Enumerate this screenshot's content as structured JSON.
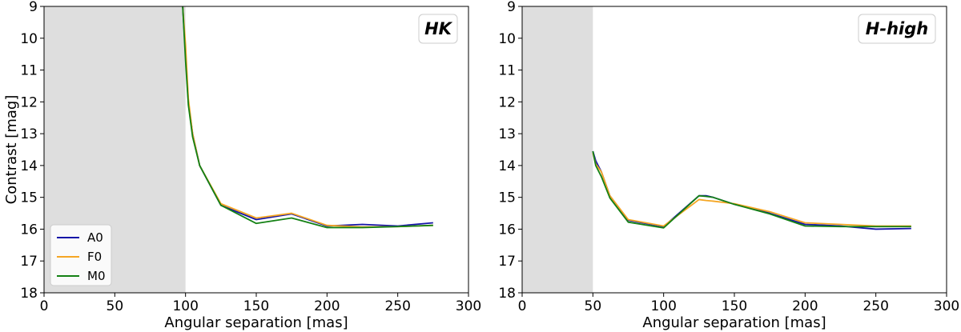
{
  "chart_data": [
    {
      "type": "line",
      "panel_label": "HK",
      "xlabel": "Angular separation [mas]",
      "ylabel": "Contrast [mag]",
      "xlim": [
        0,
        300
      ],
      "ylim": [
        18,
        9
      ],
      "y_inverted": true,
      "xticks": [
        "0",
        "50",
        "100",
        "150",
        "200",
        "250",
        "300"
      ],
      "yticks": [
        "9",
        "10",
        "11",
        "12",
        "13",
        "14",
        "15",
        "16",
        "17",
        "18"
      ],
      "shaded_region": [
        0,
        100
      ],
      "legend": {
        "placement": "lower-left",
        "entries": [
          "A0",
          "F0",
          "M0"
        ]
      },
      "series": [
        {
          "name": "A0",
          "color": "#1515a8",
          "x": [
            98,
            100,
            102,
            105,
            110,
            125,
            150,
            175,
            200,
            225,
            250,
            275
          ],
          "y": [
            9.0,
            10.5,
            12.0,
            13.0,
            14.0,
            15.25,
            15.7,
            15.52,
            15.9,
            15.85,
            15.9,
            15.8
          ]
        },
        {
          "name": "F0",
          "color": "#f5a623",
          "x": [
            98,
            100,
            102,
            105,
            110,
            125,
            150,
            175,
            200,
            225,
            250,
            275
          ],
          "y": [
            9.0,
            10.2,
            11.9,
            13.0,
            14.0,
            15.2,
            15.65,
            15.5,
            15.88,
            15.93,
            15.92,
            15.88
          ]
        },
        {
          "name": "M0",
          "color": "#148114",
          "x": [
            98,
            100,
            102,
            105,
            110,
            125,
            150,
            175,
            200,
            225,
            250,
            275
          ],
          "y": [
            9.0,
            10.7,
            12.1,
            13.1,
            14.0,
            15.25,
            15.82,
            15.65,
            15.95,
            15.95,
            15.92,
            15.88
          ]
        }
      ]
    },
    {
      "type": "line",
      "panel_label": "H-high",
      "xlabel": "Angular separation [mas]",
      "ylabel": "",
      "xlim": [
        0,
        300
      ],
      "ylim": [
        18,
        9
      ],
      "y_inverted": true,
      "xticks": [
        "0",
        "50",
        "100",
        "150",
        "200",
        "250",
        "300"
      ],
      "yticks": [
        "9",
        "10",
        "11",
        "12",
        "13",
        "14",
        "15",
        "16",
        "17",
        "18"
      ],
      "shaded_region": [
        0,
        50
      ],
      "series": [
        {
          "name": "A0",
          "color": "#1515a8",
          "x": [
            50,
            52,
            56,
            62,
            75,
            100,
            125,
            130,
            135,
            150,
            175,
            200,
            225,
            250,
            275
          ],
          "y": [
            13.55,
            13.85,
            14.2,
            14.95,
            15.72,
            15.92,
            14.95,
            14.95,
            15.0,
            15.22,
            15.5,
            15.85,
            15.9,
            16.0,
            15.98
          ]
        },
        {
          "name": "F0",
          "color": "#f5a623",
          "x": [
            50,
            52,
            56,
            62,
            75,
            100,
            125,
            130,
            135,
            150,
            175,
            200,
            225,
            250,
            275
          ],
          "y": [
            13.6,
            13.95,
            14.2,
            14.95,
            15.7,
            15.9,
            15.07,
            15.1,
            15.12,
            15.2,
            15.45,
            15.8,
            15.85,
            15.9,
            15.9
          ]
        },
        {
          "name": "M0",
          "color": "#148114",
          "x": [
            50,
            52,
            56,
            62,
            75,
            100,
            125,
            130,
            135,
            150,
            175,
            200,
            225,
            250,
            275
          ],
          "y": [
            13.55,
            14.0,
            14.35,
            15.02,
            15.78,
            15.96,
            14.95,
            14.97,
            15.0,
            15.22,
            15.52,
            15.9,
            15.92,
            15.92,
            15.92
          ]
        }
      ]
    }
  ]
}
